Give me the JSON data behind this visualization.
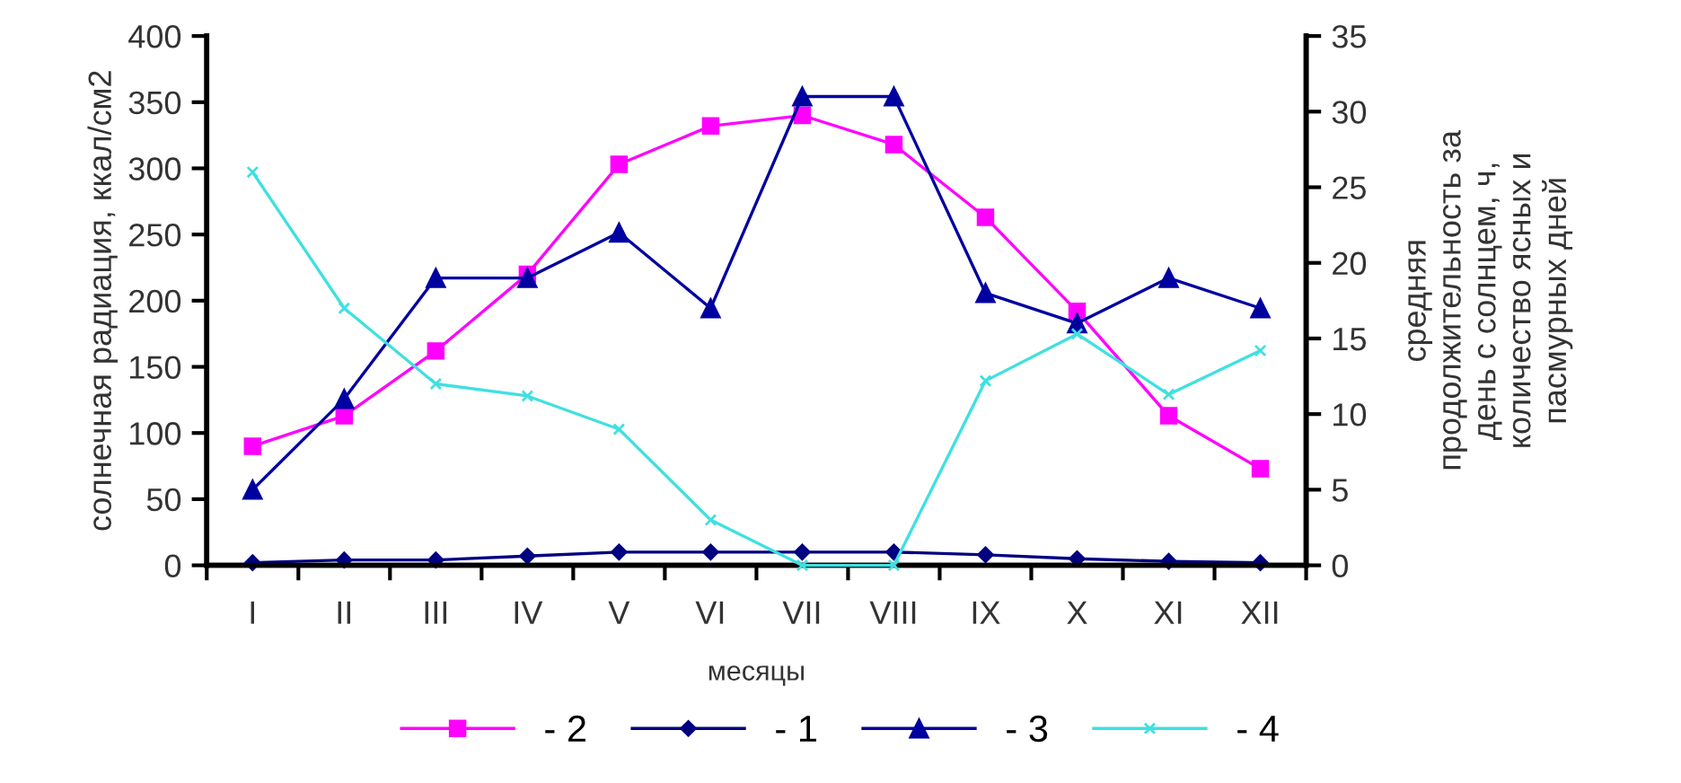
{
  "chart_data": {
    "type": "line",
    "xlabel": "месяцы",
    "ylabel": "солнечная радиация, ккал/см2",
    "y2label": "средняя\nпродолжительность за\nдень с солнцем, ч,\nколичество ясных и\nпасмурных дней",
    "categories": [
      "I",
      "II",
      "III",
      "IV",
      "V",
      "VI",
      "VII",
      "VIII",
      "IX",
      "X",
      "XI",
      "XII"
    ],
    "series": [
      {
        "name": "- 2",
        "color": "#ff00ff",
        "marker": "square",
        "values": [
          90,
          113,
          162,
          220,
          303,
          332,
          340,
          318,
          263,
          192,
          113,
          73
        ]
      },
      {
        "name": "- 1",
        "color": "#000080",
        "marker": "diamond",
        "values": [
          2,
          4,
          4,
          7,
          10,
          10,
          10,
          10,
          8,
          5,
          3,
          2
        ]
      },
      {
        "name": "- 3",
        "color": "#0000a0",
        "marker": "triangle",
        "axis": "y2",
        "values": [
          5,
          11,
          19,
          19,
          22,
          17,
          31,
          31,
          18,
          16,
          19,
          17
        ]
      },
      {
        "name": "- 4",
        "color": "#40e0e0",
        "marker": "cross",
        "axis": "y2",
        "values": [
          26,
          17,
          12,
          11.2,
          9,
          3,
          0,
          0,
          12.2,
          15.3,
          11.3,
          14.2
        ]
      }
    ],
    "ylim": [
      0,
      400
    ],
    "yticks": [
      0,
      50,
      100,
      150,
      200,
      250,
      300,
      350,
      400
    ],
    "y2lim": [
      0,
      35
    ],
    "y2ticks": [
      0,
      5,
      10,
      15,
      20,
      25,
      30,
      35
    ],
    "grid": false,
    "legend": "bottom"
  }
}
